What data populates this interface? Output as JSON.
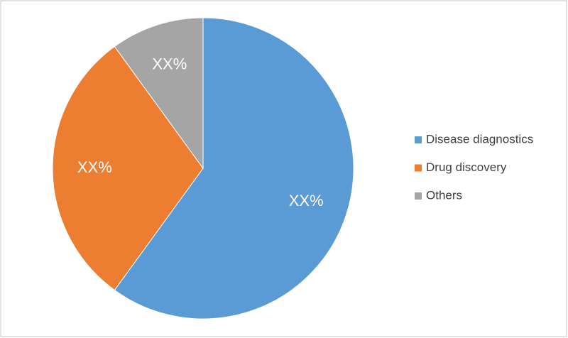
{
  "chart_data": {
    "type": "pie",
    "categories": [
      "Disease diagnostics",
      "Drug discovery",
      "Others"
    ],
    "values": [
      60,
      30,
      10
    ],
    "value_labels": [
      "XX%",
      "XX%",
      "XX%"
    ],
    "colors": [
      "#5b9bd5",
      "#ed7d31",
      "#a5a5a5"
    ],
    "legend": "right"
  }
}
